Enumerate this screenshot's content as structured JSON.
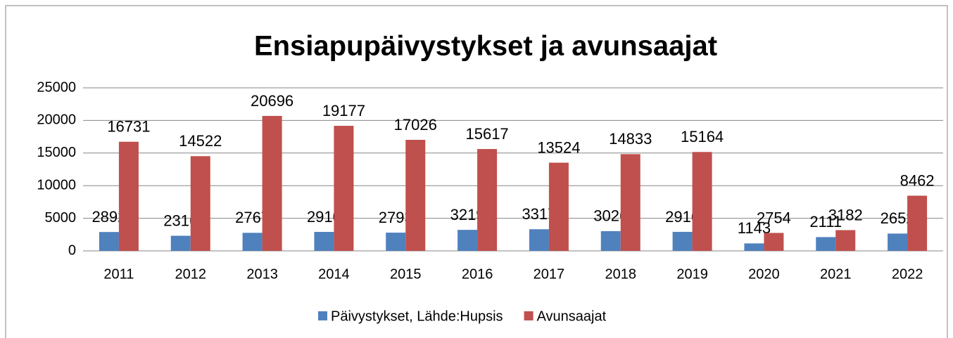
{
  "chart_data": {
    "type": "bar",
    "title": "Ensiapupäivystykset ja avunsaajat",
    "categories": [
      "2011",
      "2012",
      "2013",
      "2014",
      "2015",
      "2016",
      "2017",
      "2018",
      "2019",
      "2020",
      "2021",
      "2022"
    ],
    "series": [
      {
        "name": "Päivystykset, Lähde:Hupsis",
        "color": "#4f81bd",
        "values": [
          2892,
          2316,
          2767,
          2910,
          2793,
          3219,
          3317,
          3026,
          2916,
          1143,
          2111,
          2652
        ]
      },
      {
        "name": "Avunsaajat",
        "color": "#c0504d",
        "values": [
          16731,
          14522,
          20696,
          19177,
          17026,
          15617,
          13524,
          14833,
          15164,
          2754,
          3182,
          8462
        ]
      }
    ],
    "ylim": [
      0,
      25000
    ],
    "yticks": [
      0,
      5000,
      10000,
      15000,
      20000,
      25000
    ],
    "grid": true,
    "legend": "bottom"
  }
}
